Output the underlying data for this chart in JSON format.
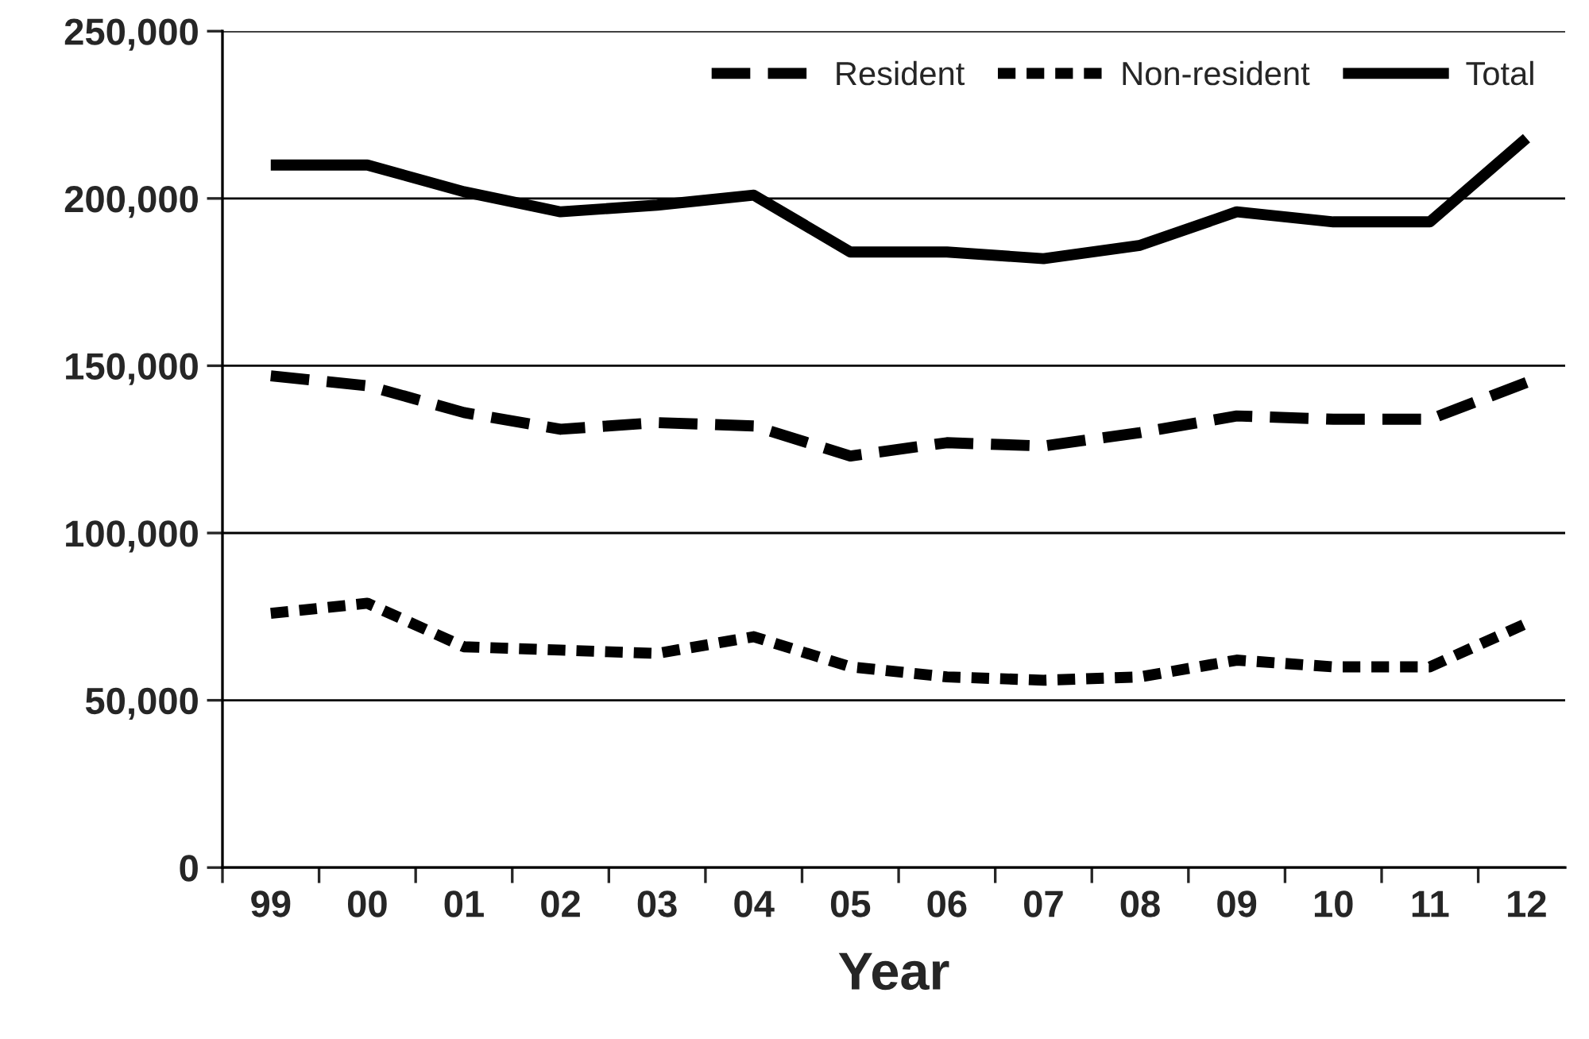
{
  "chart_data": {
    "type": "line",
    "xlabel": "Year",
    "categories": [
      "99",
      "00",
      "01",
      "02",
      "03",
      "04",
      "05",
      "06",
      "07",
      "08",
      "09",
      "10",
      "11",
      "12"
    ],
    "series": [
      {
        "name": "Resident",
        "color": "#000000",
        "line_style": "dashed",
        "values": [
          147000,
          144000,
          136000,
          131000,
          133000,
          132000,
          123000,
          127000,
          126000,
          130000,
          135000,
          134000,
          134000,
          145000
        ]
      },
      {
        "name": "Non-resident",
        "color": "#000000",
        "line_style": "dotted",
        "values": [
          76000,
          79000,
          66000,
          65000,
          64000,
          69000,
          60000,
          57000,
          56000,
          57000,
          62000,
          60000,
          60000,
          73000
        ]
      },
      {
        "name": "Total",
        "color": "#000000",
        "line_style": "solid",
        "values": [
          210000,
          210000,
          202000,
          196000,
          198000,
          201000,
          184000,
          184000,
          182000,
          186000,
          196000,
          193000,
          193000,
          218000
        ]
      }
    ],
    "ylim": [
      0,
      250000
    ],
    "yticks": [
      0,
      {
        "value": 50000,
        "label": "50,000"
      },
      {
        "value": 100000,
        "label": "100,000"
      },
      {
        "value": 150000,
        "label": "150,000"
      },
      {
        "value": 200000,
        "label": "200,000"
      },
      {
        "value": 250000,
        "label": "250,000"
      }
    ],
    "grid": "y",
    "legend": "top right",
    "marker": "none"
  }
}
